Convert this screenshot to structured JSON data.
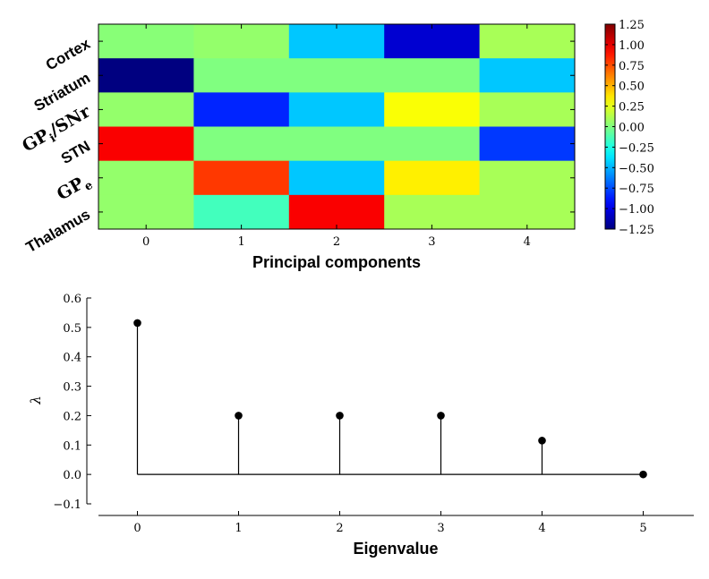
{
  "chart_data": [
    {
      "type": "heatmap",
      "rows": [
        "Cortex",
        "Striatum",
        "GPi/SNr",
        "STN",
        "GPe",
        "Thalamus"
      ],
      "row_label_parts": [
        {
          "text": "Cortex"
        },
        {
          "text": "Striatum"
        },
        {
          "text": "GP",
          "sub": "i",
          "rest": "/SNr"
        },
        {
          "text": "STN"
        },
        {
          "text": "GP",
          "sub": "e",
          "rest": ""
        },
        {
          "text": "Thalamus"
        }
      ],
      "columns": [
        0,
        1,
        2,
        3,
        4
      ],
      "values": [
        [
          0.02,
          0.05,
          -0.45,
          -1.05,
          0.1
        ],
        [
          -1.25,
          0.0,
          0.0,
          0.0,
          -0.45
        ],
        [
          0.05,
          -0.85,
          -0.45,
          0.3,
          0.1
        ],
        [
          0.95,
          0.0,
          0.0,
          0.0,
          -0.8
        ],
        [
          0.05,
          0.8,
          -0.45,
          0.35,
          0.1
        ],
        [
          0.05,
          -0.15,
          0.95,
          0.1,
          0.1
        ]
      ],
      "xlabel": "Principal components",
      "ylabel": "",
      "colormap": "jet",
      "vmin": -1.25,
      "vmax": 1.25,
      "colorbar_ticks": [
        1.25,
        1.0,
        0.75,
        0.5,
        0.25,
        0.0,
        -0.25,
        -0.5,
        -0.75,
        -1.0,
        -1.25
      ],
      "colorbar_tick_labels": [
        "1.25",
        "1.00",
        "0.75",
        "0.50",
        "0.25",
        "0.00",
        "−0.25",
        "−0.50",
        "−0.75",
        "−1.00",
        "−1.25"
      ]
    },
    {
      "type": "scatter",
      "style": "stem",
      "x": [
        0,
        1,
        2,
        3,
        4,
        5
      ],
      "y": [
        0.515,
        0.2,
        0.2,
        0.2,
        0.115,
        0.0
      ],
      "xlabel": "Eigenvalue",
      "ylabel": "λ",
      "xlim": [
        -0.5,
        5.5
      ],
      "ylim": [
        -0.1,
        0.6
      ],
      "xticks": [
        0,
        1,
        2,
        3,
        4,
        5
      ],
      "yticks": [
        0.6,
        0.5,
        0.4,
        0.3,
        0.2,
        0.1,
        0.0,
        -0.1
      ],
      "ytick_labels": [
        "0.6",
        "0.5",
        "0.4",
        "0.3",
        "0.2",
        "0.1",
        "0.0",
        "−0.1"
      ],
      "color": "#000000"
    }
  ]
}
